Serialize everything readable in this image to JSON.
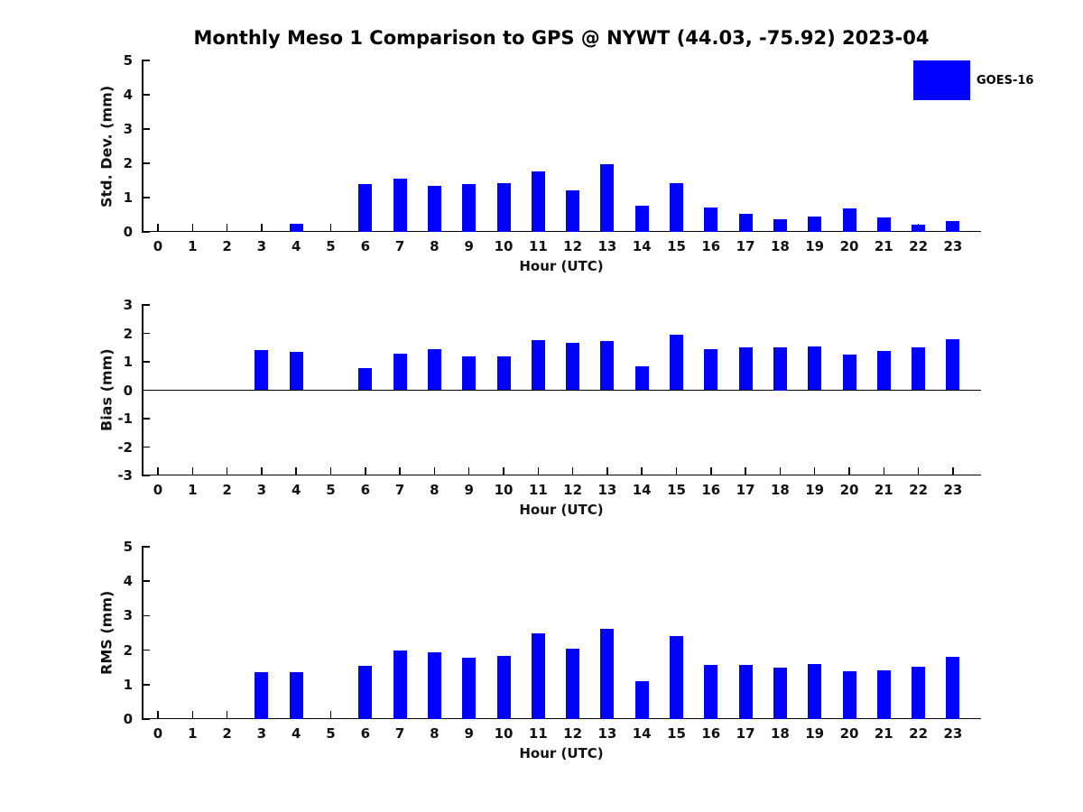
{
  "figure": {
    "title": "Monthly Meso 1 Comparison to GPS @ NYWT (44.03, -75.92) 2023-04",
    "background_color": "#ffffff",
    "axis_color": "#000000",
    "text_color": "#111111"
  },
  "legend": {
    "label": "GOES-16",
    "swatch_color": "#0000ff",
    "position": "top-right"
  },
  "chart_data": [
    {
      "type": "bar",
      "series_name": "GOES-16",
      "title": "",
      "xlabel": "Hour (UTC)",
      "ylabel": "Std. Dev. (mm)",
      "ylim": [
        0,
        5
      ],
      "yticks": [
        0,
        1,
        2,
        3,
        4,
        5
      ],
      "grid": false,
      "bar_color": "#0000ff",
      "categories": [
        "0",
        "1",
        "2",
        "3",
        "4",
        "5",
        "6",
        "7",
        "8",
        "9",
        "10",
        "11",
        "12",
        "13",
        "14",
        "15",
        "16",
        "17",
        "18",
        "19",
        "20",
        "21",
        "22",
        "23"
      ],
      "values": [
        0,
        0,
        0,
        0,
        0.24,
        0,
        1.4,
        1.55,
        1.35,
        1.4,
        1.43,
        1.76,
        1.21,
        1.97,
        0.76,
        1.43,
        0.72,
        0.52,
        0.38,
        0.45,
        0.68,
        0.41,
        0.21,
        0.32
      ]
    },
    {
      "type": "bar",
      "series_name": "GOES-16",
      "title": "",
      "xlabel": "Hour (UTC)",
      "ylabel": "Bias (mm)",
      "ylim": [
        -3,
        3
      ],
      "yticks": [
        -3,
        -2,
        -1,
        0,
        1,
        2,
        3
      ],
      "grid": false,
      "bar_color": "#0000ff",
      "categories": [
        "0",
        "1",
        "2",
        "3",
        "4",
        "5",
        "6",
        "7",
        "8",
        "9",
        "10",
        "11",
        "12",
        "13",
        "14",
        "15",
        "16",
        "17",
        "18",
        "19",
        "20",
        "21",
        "22",
        "23"
      ],
      "values": [
        0,
        0,
        0,
        1.4,
        1.36,
        0,
        0.77,
        1.28,
        1.44,
        1.19,
        1.19,
        1.77,
        1.66,
        1.74,
        0.83,
        1.95,
        1.43,
        1.52,
        1.5,
        1.55,
        1.24,
        1.39,
        1.52,
        1.78
      ]
    },
    {
      "type": "bar",
      "series_name": "GOES-16",
      "title": "",
      "xlabel": "Hour (UTC)",
      "ylabel": "RMS (mm)",
      "ylim": [
        0,
        5
      ],
      "yticks": [
        0,
        1,
        2,
        3,
        4,
        5
      ],
      "grid": false,
      "bar_color": "#0000ff",
      "categories": [
        "0",
        "1",
        "2",
        "3",
        "4",
        "5",
        "6",
        "7",
        "8",
        "9",
        "10",
        "11",
        "12",
        "13",
        "14",
        "15",
        "16",
        "17",
        "18",
        "19",
        "20",
        "21",
        "22",
        "23"
      ],
      "values": [
        0,
        0,
        0,
        1.37,
        1.37,
        0,
        1.55,
        2.0,
        1.95,
        1.78,
        1.82,
        2.48,
        2.05,
        2.63,
        1.1,
        2.4,
        1.58,
        1.58,
        1.5,
        1.6,
        1.4,
        1.42,
        1.52,
        1.8
      ]
    }
  ]
}
